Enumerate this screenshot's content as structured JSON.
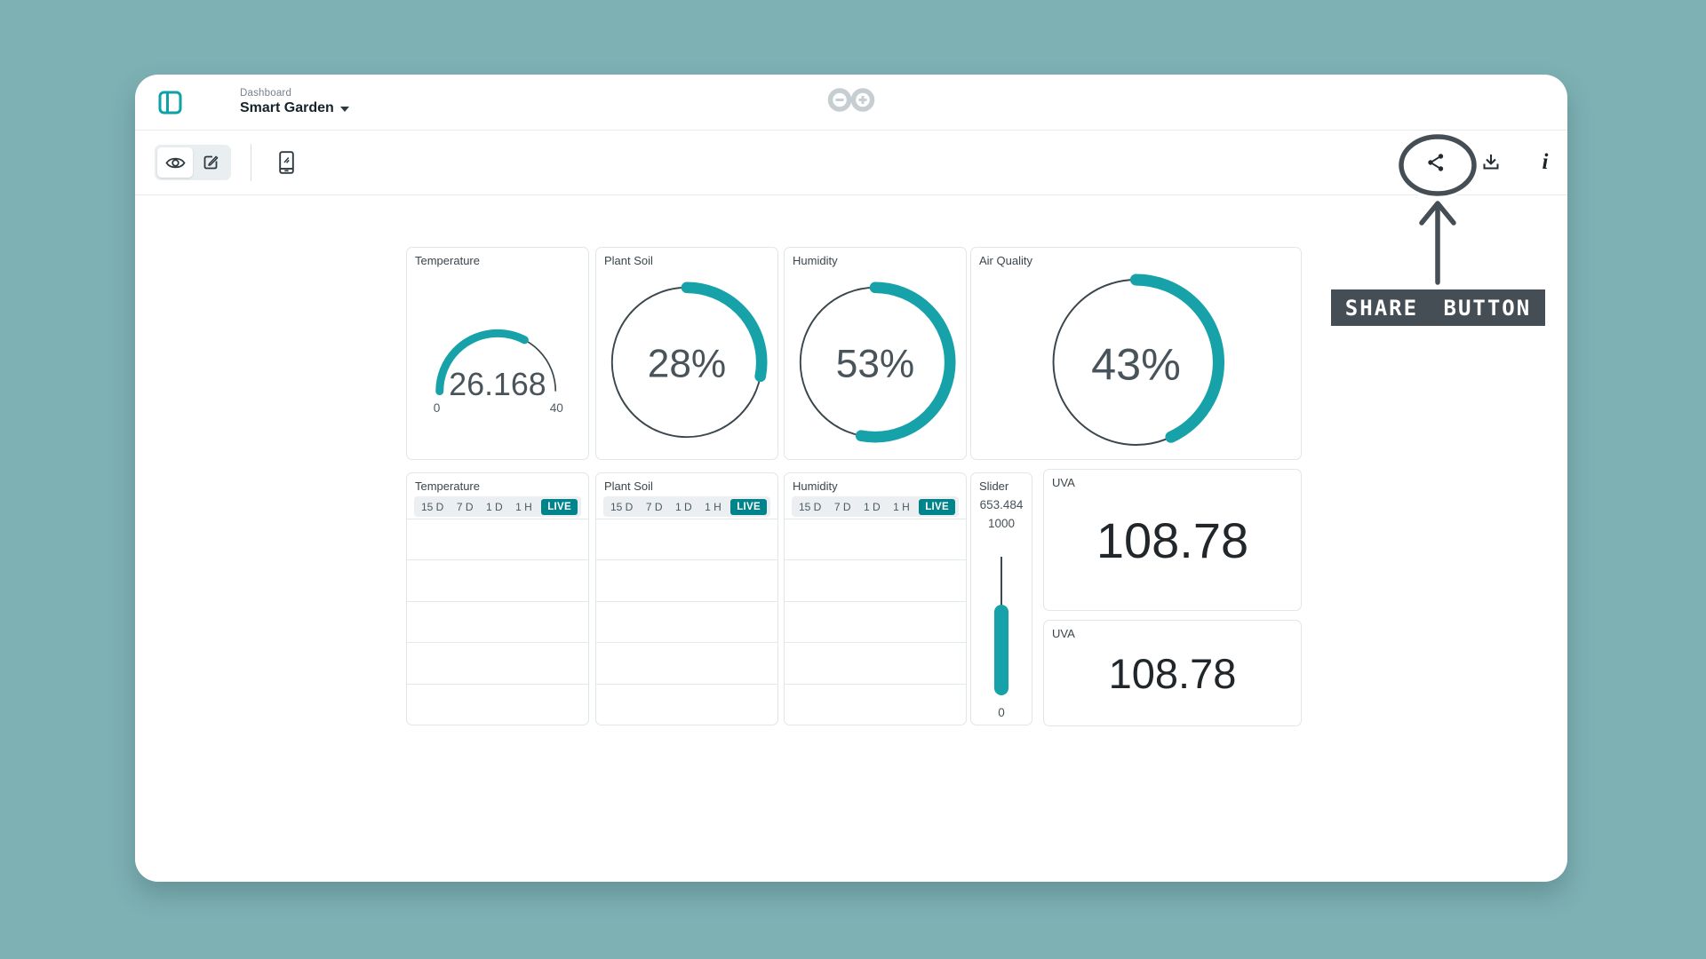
{
  "colors": {
    "background": "#7DB1B4",
    "accent": "#17A2A9",
    "badge": "#00848B",
    "annotation": "#454E54",
    "track": "#3A464C"
  },
  "header": {
    "breadcrumb": "Dashboard",
    "title": "Smart Garden"
  },
  "icons": {
    "sidebar_toggle": "panel-left-icon",
    "logo": "arduino-infinity-logo",
    "view": "eye-icon",
    "edit": "pencil-square-icon",
    "mobile": "phone-icon",
    "share": "share-nodes-icon",
    "download": "download-tray-icon",
    "info_glyph": "i"
  },
  "annotation": {
    "label": "SHARE BUTTON"
  },
  "widgets": {
    "gauges": [
      {
        "title": "Temperature",
        "type": "semicircle-gauge",
        "value": "26.168",
        "min": "0",
        "max": "40",
        "percent": 0.654
      },
      {
        "title": "Plant Soil",
        "type": "ring-gauge",
        "value": "28%",
        "percent": 0.28
      },
      {
        "title": "Humidity",
        "type": "ring-gauge",
        "value": "53%",
        "percent": 0.53
      },
      {
        "title": "Air Quality",
        "type": "ring-gauge",
        "value": "43%",
        "percent": 0.43
      }
    ],
    "charts": [
      {
        "title": "Temperature",
        "ranges": [
          "15 D",
          "7 D",
          "1 D",
          "1 H"
        ],
        "live_label": "LIVE",
        "gridlines": 5,
        "series": []
      },
      {
        "title": "Plant Soil",
        "ranges": [
          "15 D",
          "7 D",
          "1 D",
          "1 H"
        ],
        "live_label": "LIVE",
        "gridlines": 5,
        "series": []
      },
      {
        "title": "Humidity",
        "ranges": [
          "15 D",
          "7 D",
          "1 D",
          "1 H"
        ],
        "live_label": "LIVE",
        "gridlines": 5,
        "series": []
      }
    ],
    "slider": {
      "title": "Slider",
      "value": "653.484",
      "max": "1000",
      "min": "0",
      "percent": 0.653
    },
    "values": [
      {
        "title": "UVA",
        "value": "108.78"
      },
      {
        "title": "UVA",
        "value": "108.78"
      }
    ]
  }
}
